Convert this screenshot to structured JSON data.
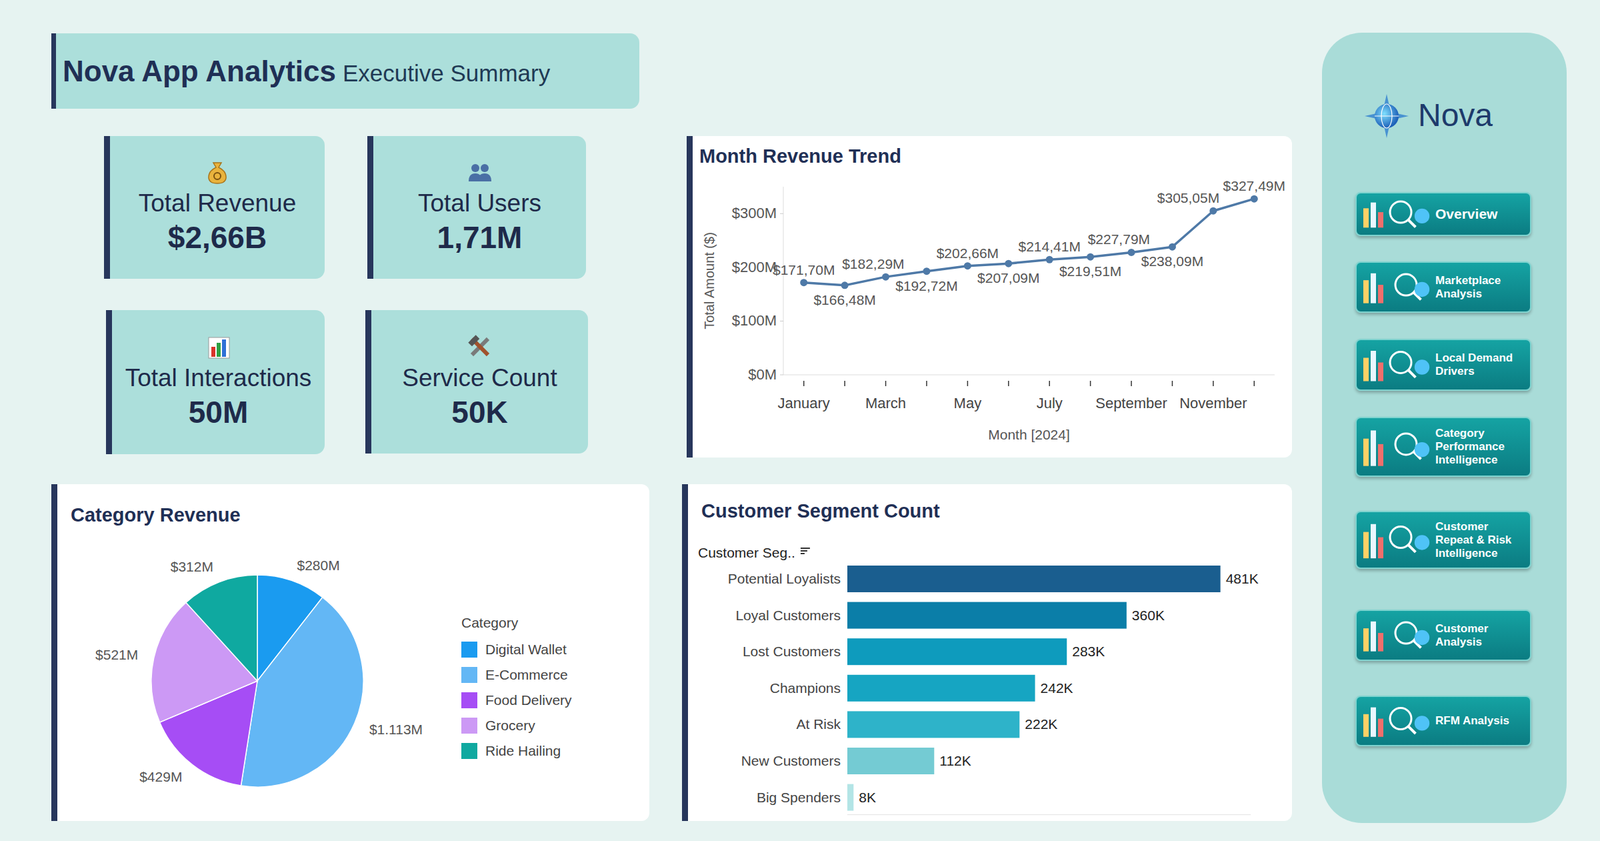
{
  "header": {
    "title": "Nova App Analytics",
    "subtitle": "Executive Summary"
  },
  "kpis": [
    {
      "label": "Total Revenue",
      "value": "$2,66B"
    },
    {
      "label": "Total Users",
      "value": "1,71M"
    },
    {
      "label": "Total Interactions",
      "value": "50M"
    },
    {
      "label": "Service Count",
      "value": "50K"
    }
  ],
  "brand": "Nova",
  "nav": [
    "Overview",
    "Marketplace Analysis",
    "Local Demand Drivers",
    "Category Performance Intelligence",
    "Customer Repeat & Risk Intelligence",
    "Customer Analysis",
    "RFM Analysis"
  ],
  "chart_data": [
    {
      "type": "line",
      "title": "Month Revenue Trend",
      "x_label": "Month [2024]",
      "y_label": "Total Amount ($)",
      "categories": [
        "January",
        null,
        "March",
        null,
        "May",
        null,
        "July",
        null,
        "September",
        null,
        "November",
        null
      ],
      "values": [
        171.7,
        166.48,
        182.29,
        192.72,
        202.66,
        207.09,
        214.41,
        219.51,
        227.79,
        238.09,
        305.05,
        327.49
      ],
      "value_labels": [
        "$171,70M",
        "$166,48M",
        "$182,29M",
        "$192,72M",
        "$202,66M",
        "$207,09M",
        "$214,41M",
        "$219,51M",
        "$227,79M",
        "$238,09M",
        "$305,05M",
        "$327,49M"
      ],
      "color": "#4e79a7",
      "marker": "circle",
      "grid": false,
      "data_labels": true,
      "ylim": [
        0,
        350
      ],
      "yticks": [
        {
          "value": 0,
          "label": "$0M"
        },
        {
          "value": 100,
          "label": "$100M"
        },
        {
          "value": 200,
          "label": "$200M"
        },
        {
          "value": 300,
          "label": "$300M"
        }
      ]
    },
    {
      "type": "pie",
      "title": "Category Revenue",
      "legend_title": "Category",
      "categories": [
        "Digital Wallet",
        "E-Commerce",
        "Food Delivery",
        "Grocery",
        "Ride Hailing"
      ],
      "values": [
        280,
        1113,
        429,
        521,
        312
      ],
      "value_labels": [
        "$280M",
        "$1.113M",
        "$429M",
        "$521M",
        "$312M"
      ],
      "colors": [
        "#1a9bf0",
        "#63b7f5",
        "#a64df5",
        "#cc99f5",
        "#0fa9a0"
      ],
      "legend": "right",
      "data_labels": true
    },
    {
      "type": "bar",
      "orientation": "horizontal",
      "title": "Customer Segment Count",
      "y_label": "Customer Seg..",
      "categories": [
        "Potential Loyalists",
        "Loyal Customers",
        "Lost Customers",
        "Champions",
        "At Risk",
        "New Customers",
        "Big Spenders"
      ],
      "values": [
        481000,
        360000,
        283000,
        242000,
        222000,
        112000,
        8000
      ],
      "value_labels": [
        "481K",
        "360K",
        "283K",
        "242K",
        "222K",
        "112K",
        "8K"
      ],
      "colors": [
        "#1a5e8f",
        "#0b7ea8",
        "#0e9bbd",
        "#16a5c2",
        "#2eb3c9",
        "#74cbd3",
        "#b3e5e6"
      ],
      "xlim": [
        0,
        520000
      ],
      "tick_labels": "y",
      "data_labels": true,
      "grid": false
    }
  ]
}
